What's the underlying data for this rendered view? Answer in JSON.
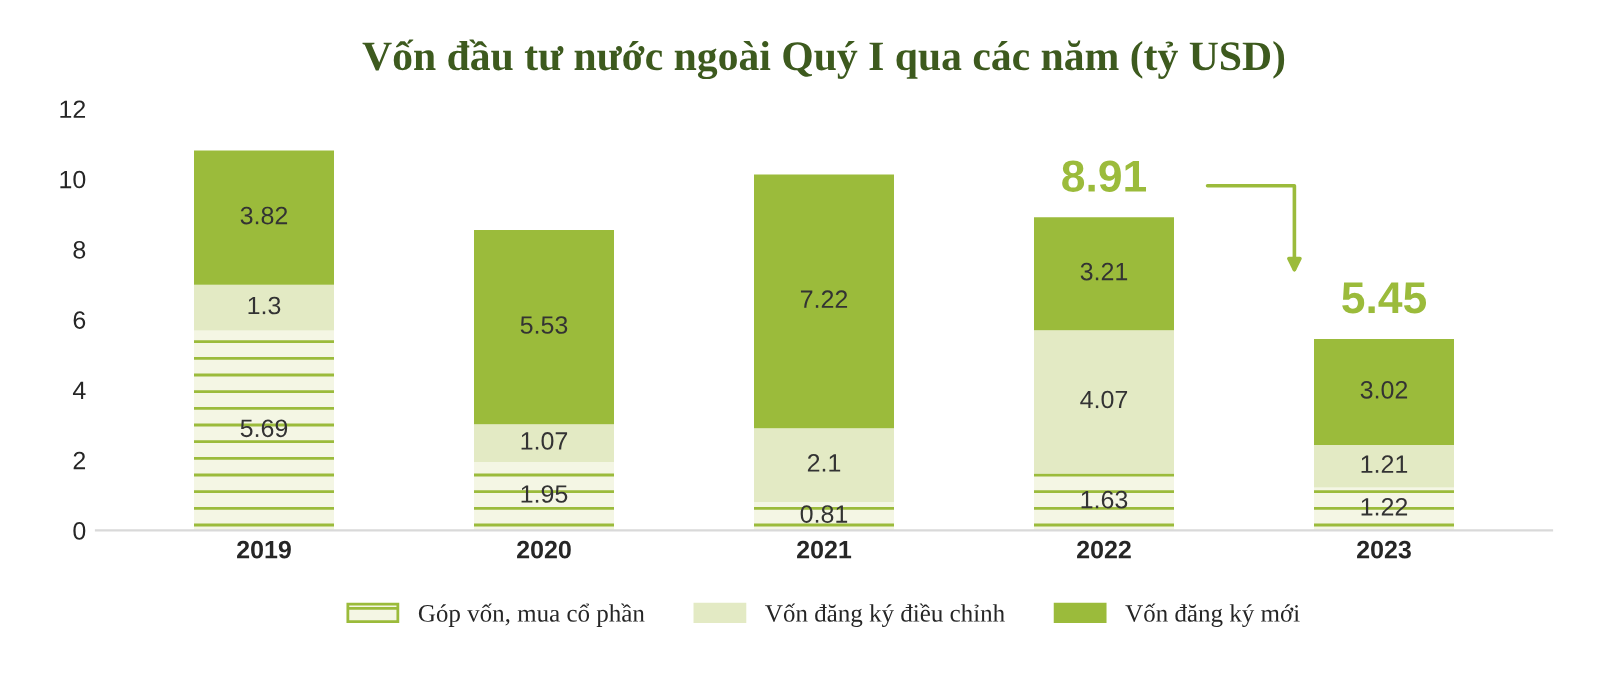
{
  "chart_data": {
    "type": "bar",
    "title": "Vốn đầu tư nước ngoài Quý I qua các năm (tỷ USD)",
    "categories": [
      "2019",
      "2020",
      "2021",
      "2022",
      "2023"
    ],
    "stacked": true,
    "data_labels": true,
    "legend": "bottom",
    "grid": false,
    "ylim": [
      0,
      12
    ],
    "yticks": [
      0,
      2,
      4,
      6,
      8,
      10,
      12
    ],
    "series": [
      {
        "name": "Góp vốn, mua cổ phần",
        "color": "#f4f6e4",
        "values": [
          5.69,
          1.95,
          0.81,
          1.63,
          1.22
        ]
      },
      {
        "name": "Vốn đăng ký điều chỉnh",
        "color": "#e3eac4",
        "values": [
          1.3,
          1.07,
          2.1,
          4.07,
          1.21
        ]
      },
      {
        "name": "Vốn đăng ký mới",
        "color": "#9bbb3b",
        "values": [
          3.82,
          5.53,
          7.22,
          3.21,
          3.02
        ]
      }
    ],
    "annotations": [
      {
        "text": "8.91",
        "x": "2022",
        "y": 8.91
      },
      {
        "text": "5.45",
        "x": "2023",
        "y": 5.45
      }
    ]
  }
}
